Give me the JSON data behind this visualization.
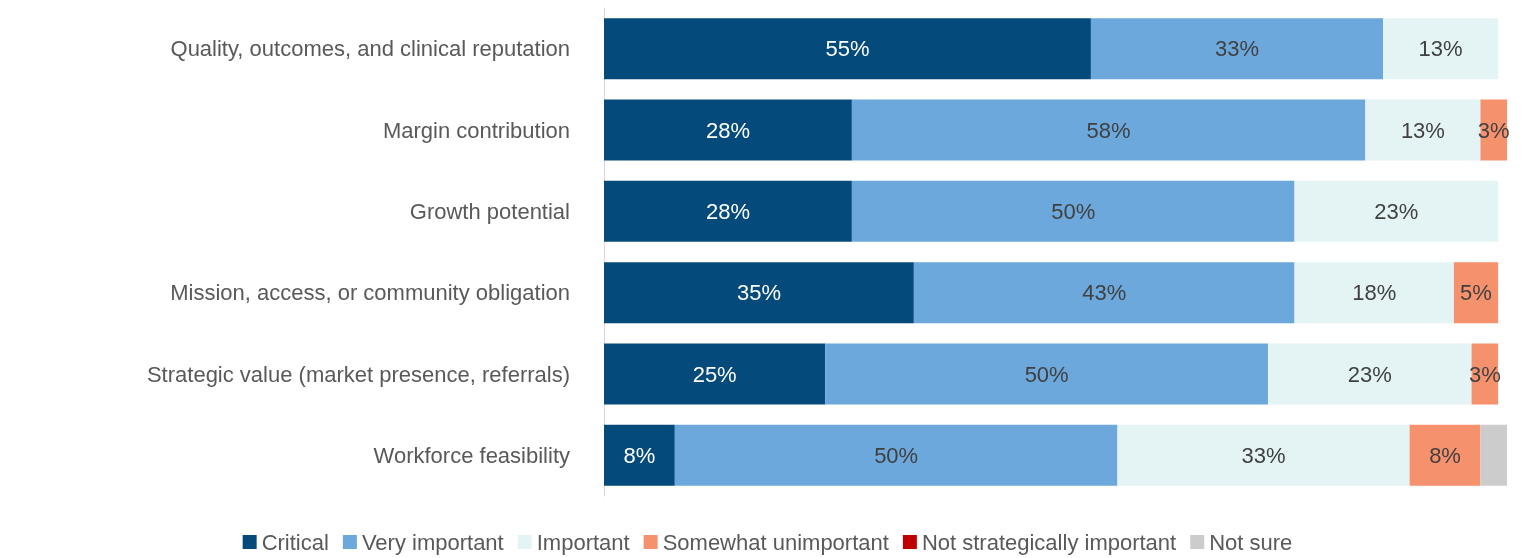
{
  "chart_data": {
    "type": "bar",
    "orientation": "horizontal",
    "stacked": true,
    "legend": "bottom",
    "categories": [
      "Quality, outcomes, and clinical reputation",
      "Margin contribution",
      "Growth potential",
      "Mission, access, or community obligation",
      "Strategic value (market presence, referrals)",
      "Workforce feasibility"
    ],
    "series": [
      {
        "name": "Critical",
        "color": "#044a7a",
        "values": [
          55,
          28,
          28,
          35,
          25,
          8
        ],
        "value_labels": [
          "55%",
          "28%",
          "28%",
          "35%",
          "25%",
          "8%"
        ]
      },
      {
        "name": "Very important",
        "color": "#6ca8dc",
        "values": [
          33,
          58,
          50,
          43,
          50,
          50
        ],
        "value_labels": [
          "33%",
          "58%",
          "50%",
          "43%",
          "50%",
          "50%"
        ]
      },
      {
        "name": "Important",
        "color": "#e4f4f5",
        "values": [
          13,
          13,
          23,
          18,
          23,
          33
        ],
        "value_labels": [
          "13%",
          "13%",
          "23%",
          "18%",
          "23%",
          "33%"
        ]
      },
      {
        "name": "Somewhat unimportant",
        "color": "#f5916c",
        "values": [
          null,
          3,
          null,
          5,
          3,
          8
        ],
        "value_labels": [
          null,
          "3%",
          null,
          "5%",
          "3%",
          "8%"
        ]
      },
      {
        "name": "Not strategically important",
        "color": "#c00000",
        "values": [
          null,
          null,
          null,
          null,
          null,
          null
        ]
      },
      {
        "name": "Not sure",
        "color": "#cccccc",
        "values": [
          null,
          null,
          null,
          null,
          null,
          3
        ],
        "value_labels": [
          null,
          null,
          null,
          null,
          null,
          null
        ]
      }
    ]
  }
}
